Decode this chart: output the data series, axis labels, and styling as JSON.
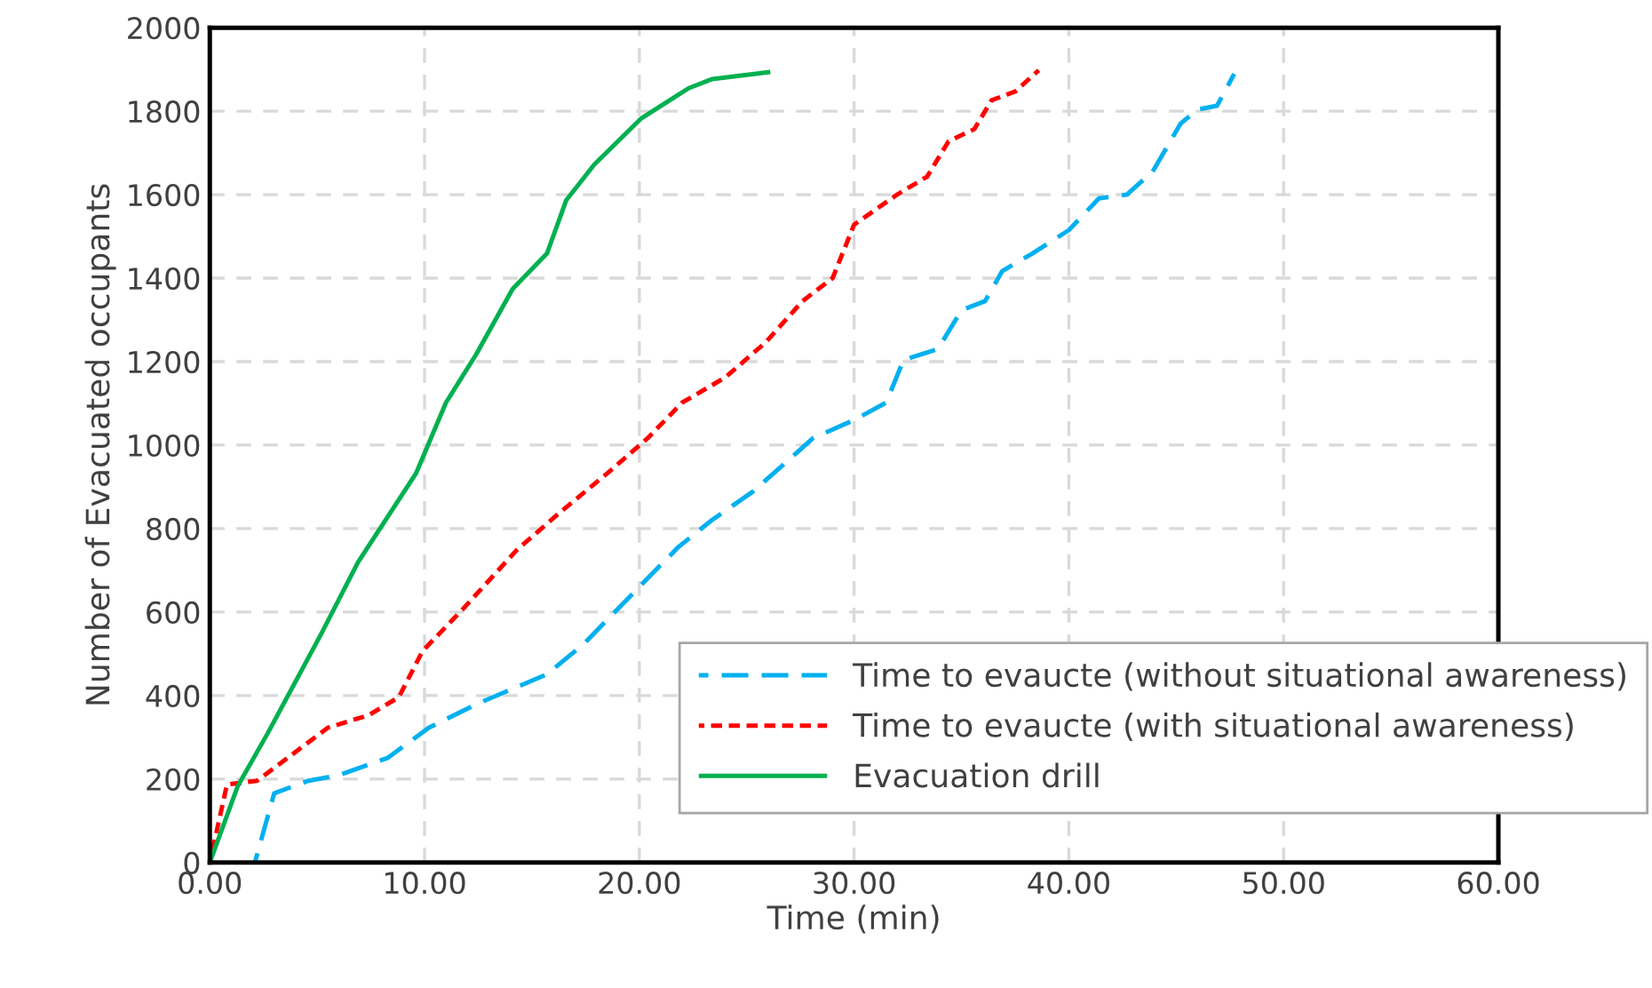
{
  "chart_data": {
    "type": "line",
    "xlabel": "Time (min)",
    "ylabel": "Number of Evacuated occupants",
    "xlim": [
      0,
      60
    ],
    "ylim": [
      0,
      2000
    ],
    "xticks": [
      {
        "value": 0,
        "label": "0.00"
      },
      {
        "value": 10,
        "label": "10.00"
      },
      {
        "value": 20,
        "label": "20.00"
      },
      {
        "value": 30,
        "label": "30.00"
      },
      {
        "value": 40,
        "label": "40.00"
      },
      {
        "value": 50,
        "label": "50.00"
      },
      {
        "value": 60,
        "label": "60.00"
      }
    ],
    "yticks": [
      0,
      200,
      400,
      600,
      800,
      1000,
      1200,
      1400,
      1600,
      1800,
      2000
    ],
    "grid": true,
    "legend": "bottom right",
    "series": [
      {
        "name": "Time to evaucte (without situational awareness)",
        "color": "#00b0f0",
        "line_style": "dashed",
        "x": [
          2.1,
          3.0,
          4.6,
          6.0,
          8.3,
          10.2,
          12.4,
          15.7,
          17.4,
          19.5,
          21.8,
          23.4,
          25.3,
          28.1,
          30.0,
          31.5,
          32.3,
          33.9,
          35.0,
          36.1,
          36.9,
          38.3,
          40.0,
          41.4,
          42.7,
          43.9,
          45.2,
          46.0,
          46.9,
          47.7
        ],
        "values": [
          0,
          166,
          196,
          209,
          251,
          323,
          379,
          451,
          523,
          634,
          755,
          821,
          889,
          1017,
          1060,
          1102,
          1204,
          1230,
          1323,
          1345,
          1417,
          1459,
          1515,
          1591,
          1600,
          1655,
          1770,
          1804,
          1813,
          1889
        ]
      },
      {
        "name": "Time to evaucte (with situational awareness)",
        "color": "#ff0000",
        "line_style": "dotted",
        "x": [
          0,
          0.8,
          2.2,
          5.5,
          7.4,
          8.8,
          9.9,
          11.8,
          14.3,
          16.2,
          18.5,
          20.4,
          22.0,
          24.0,
          25.9,
          27.6,
          29.0,
          30.0,
          32.0,
          33.4,
          34.4,
          35.6,
          36.4,
          37.5,
          38.6
        ],
        "values": [
          0,
          187,
          196,
          323,
          353,
          396,
          506,
          608,
          749,
          834,
          932,
          1017,
          1102,
          1162,
          1247,
          1345,
          1400,
          1528,
          1600,
          1643,
          1728,
          1757,
          1826,
          1847,
          1898
        ]
      },
      {
        "name": "Evacuation drill",
        "color": "#00b050",
        "line_style": "solid",
        "x": [
          0,
          1.3,
          2.7,
          5.2,
          6.9,
          9.6,
          11.0,
          12.4,
          14.1,
          15.7,
          16.6,
          17.9,
          20.1,
          22.3,
          23.4,
          26.1
        ],
        "values": [
          0,
          183,
          310,
          549,
          719,
          932,
          1102,
          1217,
          1374,
          1459,
          1587,
          1672,
          1783,
          1855,
          1877,
          1894
        ]
      }
    ]
  }
}
